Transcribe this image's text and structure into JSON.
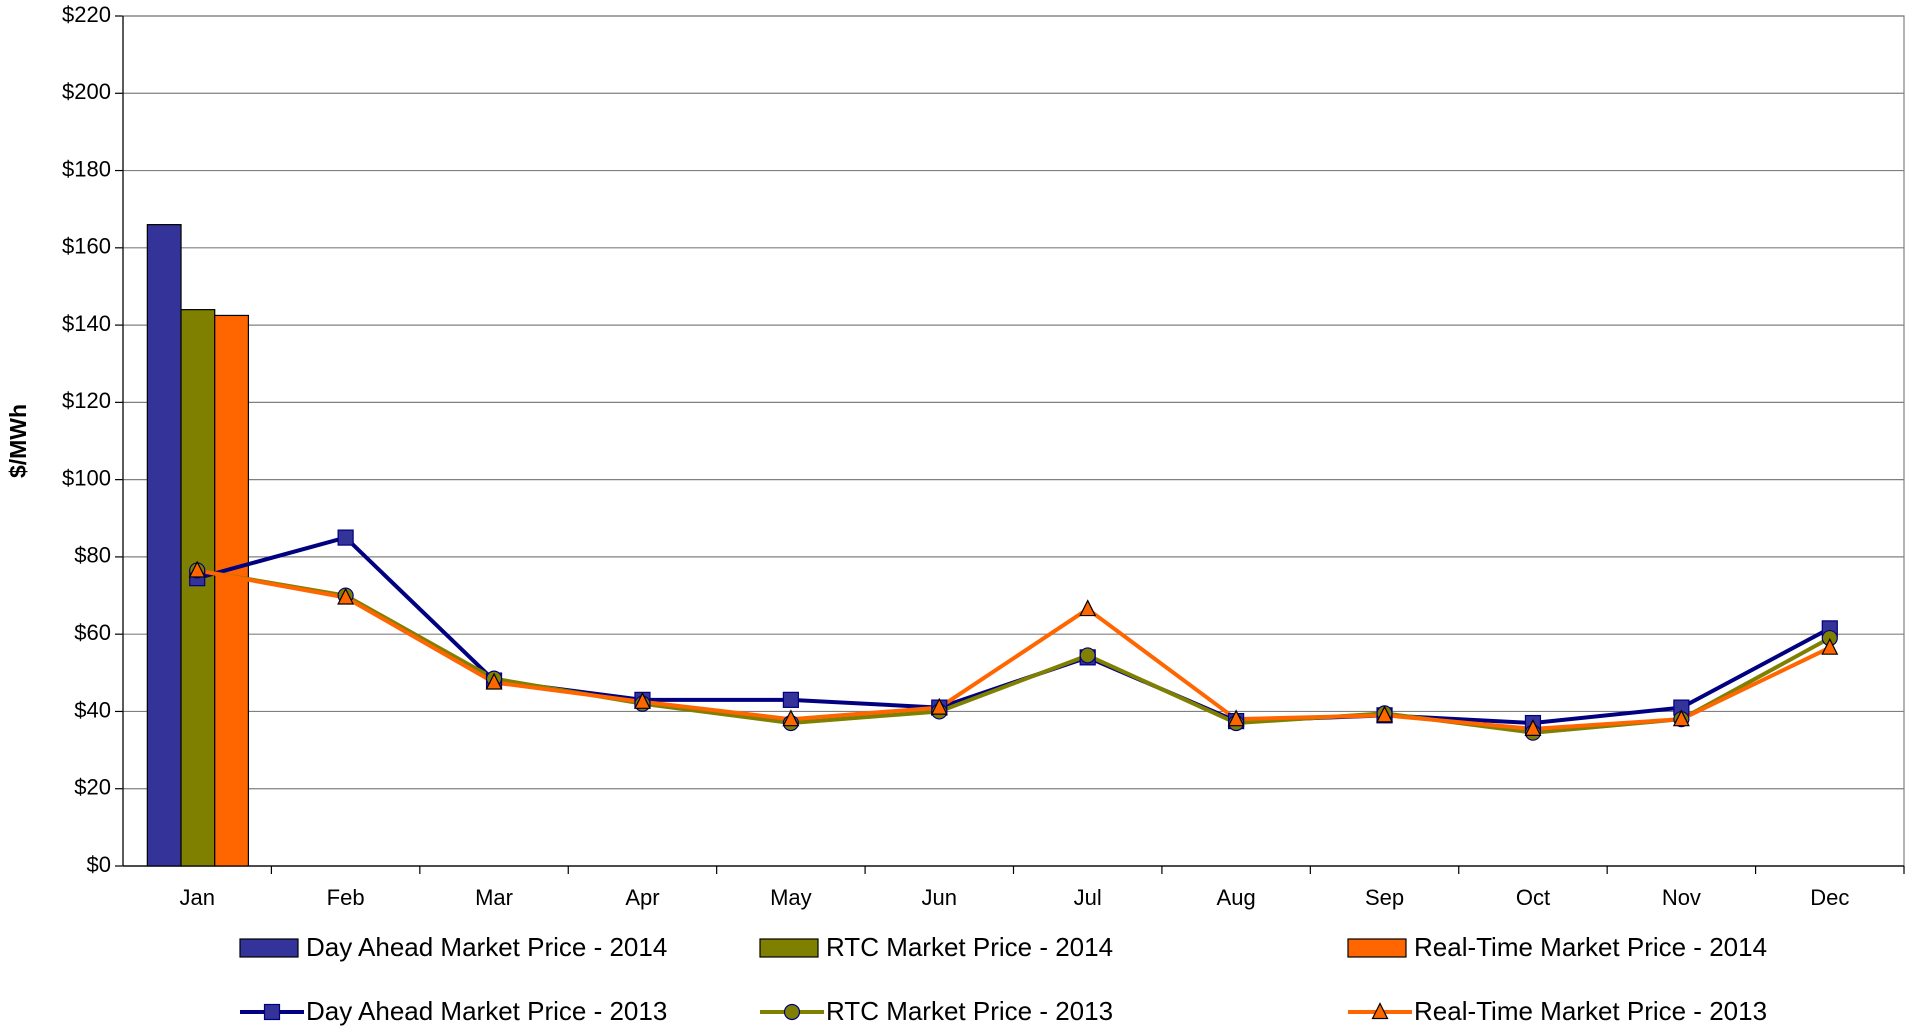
{
  "chart_data": {
    "type": "bar",
    "y_label": "$/MWh",
    "categories": [
      "Jan",
      "Feb",
      "Mar",
      "Apr",
      "May",
      "Jun",
      "Jul",
      "Aug",
      "Sep",
      "Oct",
      "Nov",
      "Dec"
    ],
    "ylim": [
      0,
      220
    ],
    "yticks": [
      {
        "value": 0,
        "label": "$0"
      },
      {
        "value": 20,
        "label": "$20"
      },
      {
        "value": 40,
        "label": "$40"
      },
      {
        "value": 60,
        "label": "$60"
      },
      {
        "value": 80,
        "label": "$80"
      },
      {
        "value": 100,
        "label": "$100"
      },
      {
        "value": 120,
        "label": "$120"
      },
      {
        "value": 140,
        "label": "$140"
      },
      {
        "value": 160,
        "label": "$160"
      },
      {
        "value": 180,
        "label": "$180"
      },
      {
        "value": 200,
        "label": "$200"
      },
      {
        "value": 220,
        "label": "$220"
      }
    ],
    "grid": true,
    "legend": "bottom",
    "series": [
      {
        "name": "Day Ahead Market Price - 2014",
        "type": "bar",
        "color": "#333399",
        "values": [
          166,
          null,
          null,
          null,
          null,
          null,
          null,
          null,
          null,
          null,
          null,
          null
        ]
      },
      {
        "name": "RTC Market Price - 2014",
        "type": "bar",
        "color": "#808000",
        "values": [
          144,
          null,
          null,
          null,
          null,
          null,
          null,
          null,
          null,
          null,
          null,
          null
        ]
      },
      {
        "name": "Real-Time Market Price - 2014",
        "type": "bar",
        "color": "#ff6600",
        "values": [
          142.5,
          null,
          null,
          null,
          null,
          null,
          null,
          null,
          null,
          null,
          null,
          null
        ]
      },
      {
        "name": "Day Ahead Market Price - 2013",
        "type": "line",
        "color": "#000080",
        "marker": "square",
        "values": [
          74.5,
          85,
          48,
          43,
          43,
          41,
          54,
          37.5,
          39,
          37,
          41,
          61.5
        ]
      },
      {
        "name": "RTC Market Price - 2013",
        "type": "line",
        "color": "#808000",
        "marker": "circle",
        "values": [
          76.5,
          70,
          48.5,
          42,
          37,
          40,
          54.5,
          37,
          39.5,
          34.5,
          38,
          59
        ]
      },
      {
        "name": "Real-Time Market Price - 2013",
        "type": "line",
        "color": "#ff6600",
        "marker": "triangle",
        "values": [
          76.5,
          69.5,
          47.5,
          42.5,
          38,
          41,
          66.5,
          38,
          39,
          35.5,
          38,
          56.5
        ]
      }
    ]
  }
}
